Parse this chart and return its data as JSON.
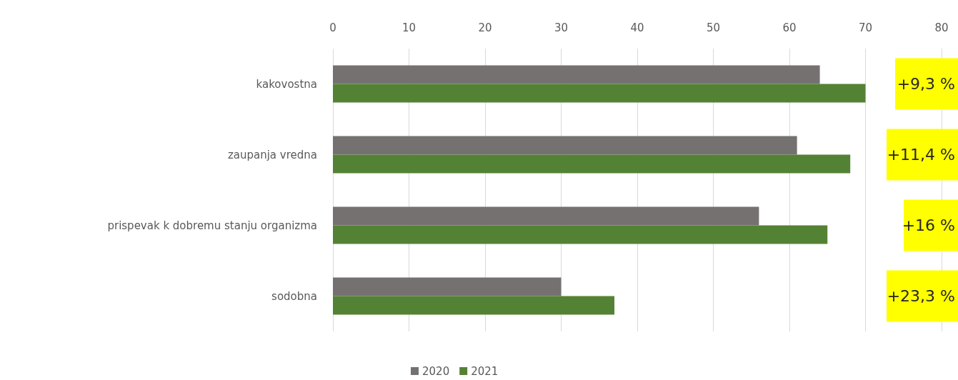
{
  "chart_data": {
    "type": "bar",
    "orientation": "horizontal",
    "categories": [
      "kakovostna",
      "zaupanja vredna",
      "prispevak k dobremu stanju organizma",
      "sodobna"
    ],
    "series": [
      {
        "name": "2020",
        "color": "#767171",
        "values": [
          64,
          61,
          56,
          30
        ]
      },
      {
        "name": "2021",
        "color": "#548235",
        "values": [
          70,
          68,
          65,
          37
        ]
      }
    ],
    "xlim": [
      0,
      80
    ],
    "xticks": [
      0,
      10,
      20,
      30,
      40,
      50,
      60,
      70,
      80
    ],
    "grid": "x",
    "legend": "bottom",
    "annotations": [
      "+9,3 %",
      "+11,4 %",
      "+16 %",
      "+23,3 %"
    ]
  }
}
